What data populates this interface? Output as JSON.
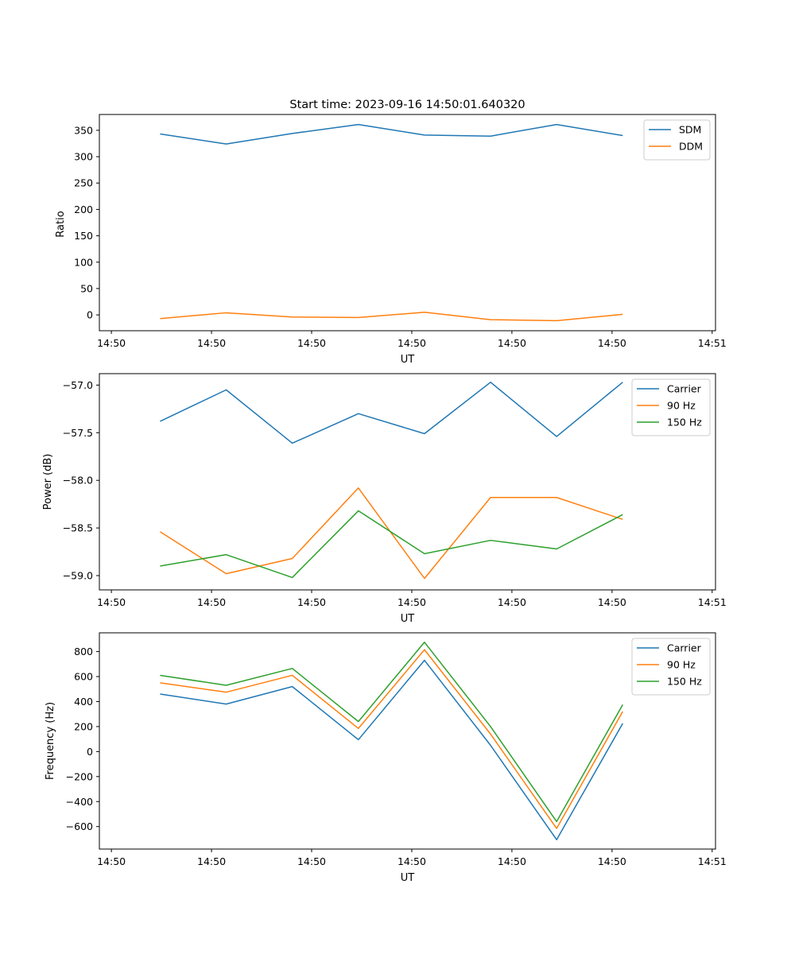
{
  "chart_data": [
    {
      "type": "line",
      "title": "Start time: 2023-09-16 14:50:01.640320",
      "xlabel": "UT",
      "ylabel": "Ratio",
      "xlim": [
        -0.33,
        8.9
      ],
      "ylim": [
        -30,
        380
      ],
      "x_ticks": [
        {
          "value": -0.15,
          "label": "14:50"
        },
        {
          "value": 1.35,
          "label": "14:50"
        },
        {
          "value": 2.85,
          "label": "14:50"
        },
        {
          "value": 4.35,
          "label": "14:50"
        },
        {
          "value": 5.85,
          "label": "14:50"
        },
        {
          "value": 7.35,
          "label": "14:50"
        },
        {
          "value": 8.85,
          "label": "14:51"
        }
      ],
      "y_ticks": [
        0,
        50,
        100,
        150,
        200,
        250,
        300,
        350
      ],
      "y_tick_labels": [
        "0",
        "50",
        "100",
        "150",
        "200",
        "250",
        "300",
        "350"
      ],
      "x": [
        0.58,
        1.57,
        2.56,
        3.55,
        4.54,
        5.53,
        6.52,
        7.51
      ],
      "series": [
        {
          "name": "SDM",
          "color": "#1f77b4",
          "values": [
            343,
            324,
            344,
            361,
            341,
            339,
            361,
            340
          ]
        },
        {
          "name": "DDM",
          "color": "#ff7f0e",
          "values": [
            -7,
            4,
            -4,
            -5,
            5,
            -9,
            -11,
            1
          ]
        }
      ],
      "legend": "top-right"
    },
    {
      "type": "line",
      "title": "",
      "xlabel": "UT",
      "ylabel": "Power (dB)",
      "xlim": [
        -0.33,
        8.9
      ],
      "ylim": [
        -59.15,
        -56.88
      ],
      "x_ticks": [
        {
          "value": -0.15,
          "label": "14:50"
        },
        {
          "value": 1.35,
          "label": "14:50"
        },
        {
          "value": 2.85,
          "label": "14:50"
        },
        {
          "value": 4.35,
          "label": "14:50"
        },
        {
          "value": 5.85,
          "label": "14:50"
        },
        {
          "value": 7.35,
          "label": "14:50"
        },
        {
          "value": 8.85,
          "label": "14:51"
        }
      ],
      "y_ticks": [
        -59.0,
        -58.5,
        -58.0,
        -57.5,
        -57.0
      ],
      "y_tick_labels": [
        "−59.0",
        "−58.5",
        "−58.0",
        "−57.5",
        "−57.0"
      ],
      "x": [
        0.58,
        1.57,
        2.56,
        3.55,
        4.54,
        5.53,
        6.52,
        7.51
      ],
      "series": [
        {
          "name": "Carrier",
          "color": "#1f77b4",
          "values": [
            -57.38,
            -57.05,
            -57.61,
            -57.3,
            -57.51,
            -56.97,
            -57.54,
            -56.97
          ]
        },
        {
          "name": "90 Hz",
          "color": "#ff7f0e",
          "values": [
            -58.54,
            -58.98,
            -58.82,
            -58.08,
            -59.03,
            -58.18,
            -58.18,
            -58.41
          ]
        },
        {
          "name": "150 Hz",
          "color": "#2ca02c",
          "values": [
            -58.9,
            -58.78,
            -59.02,
            -58.32,
            -58.77,
            -58.63,
            -58.72,
            -58.36
          ]
        }
      ],
      "legend": "top-right"
    },
    {
      "type": "line",
      "title": "",
      "xlabel": "UT",
      "ylabel": "Frequency (Hz)",
      "xlim": [
        -0.33,
        8.9
      ],
      "ylim": [
        -780,
        950
      ],
      "x_ticks": [
        {
          "value": -0.15,
          "label": "14:50"
        },
        {
          "value": 1.35,
          "label": "14:50"
        },
        {
          "value": 2.85,
          "label": "14:50"
        },
        {
          "value": 4.35,
          "label": "14:50"
        },
        {
          "value": 5.85,
          "label": "14:50"
        },
        {
          "value": 7.35,
          "label": "14:50"
        },
        {
          "value": 8.85,
          "label": "14:51"
        }
      ],
      "y_ticks": [
        -600,
        -400,
        -200,
        0,
        200,
        400,
        600,
        800
      ],
      "y_tick_labels": [
        "−600",
        "−400",
        "−200",
        "0",
        "200",
        "400",
        "600",
        "800"
      ],
      "x": [
        0.58,
        1.57,
        2.56,
        3.55,
        4.54,
        5.53,
        6.52,
        7.51
      ],
      "series": [
        {
          "name": "Carrier",
          "color": "#1f77b4",
          "values": [
            460,
            380,
            520,
            95,
            730,
            50,
            -705,
            225
          ]
        },
        {
          "name": "90 Hz",
          "color": "#ff7f0e",
          "values": [
            550,
            475,
            610,
            185,
            815,
            140,
            -615,
            320
          ]
        },
        {
          "name": "150 Hz",
          "color": "#2ca02c",
          "values": [
            610,
            530,
            665,
            240,
            875,
            200,
            -560,
            375
          ]
        }
      ],
      "legend": "top-right"
    }
  ]
}
